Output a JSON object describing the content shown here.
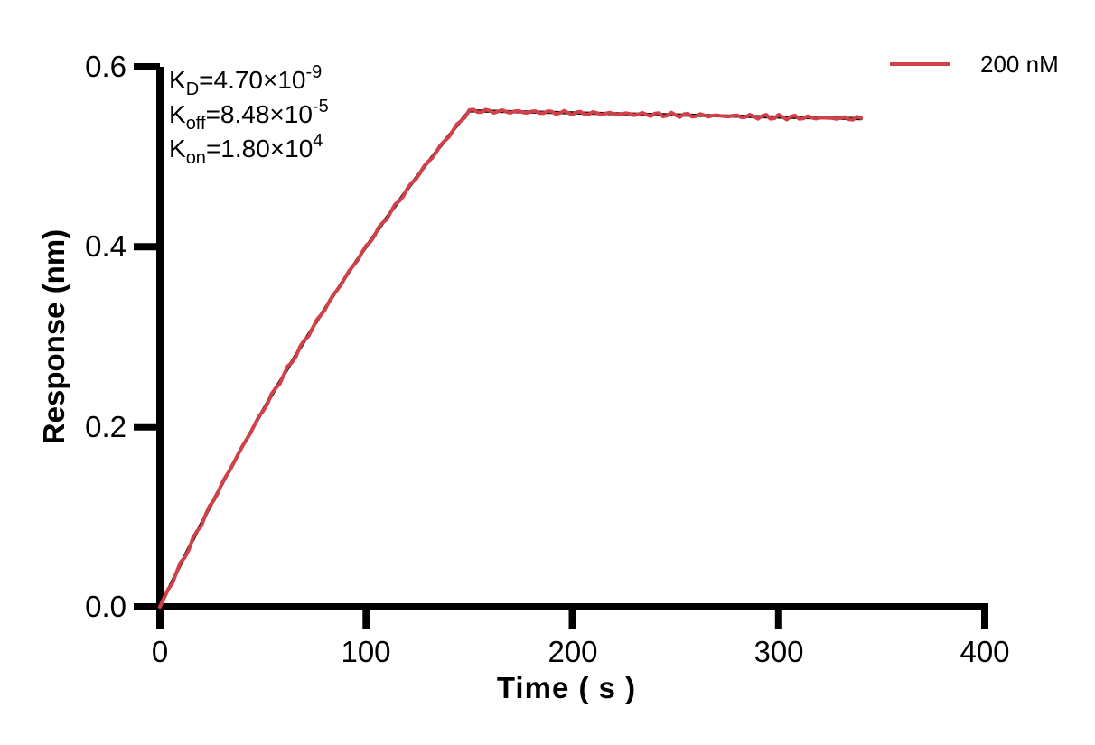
{
  "chart_data": {
    "type": "line",
    "title": "",
    "xlabel": "Time ( s )",
    "ylabel": "Response (nm)",
    "xlim": [
      0,
      400
    ],
    "ylim": [
      0.0,
      0.6
    ],
    "xtick_labels": [
      "0",
      "100",
      "200",
      "300",
      "400"
    ],
    "ytick_labels": [
      "0.0",
      "0.2",
      "0.4",
      "0.6"
    ],
    "grid": false,
    "legend_position": "top-right",
    "axis_color": "#000000",
    "fit_color": "#000000",
    "series": [
      {
        "name": "200 nM",
        "color": "#d2414a",
        "description": "measured response trace with black kinetic fit underneath; association 0-150 s, dissociation 150-340 s",
        "points": [
          [
            0,
            0.0
          ],
          [
            5,
            0.0237
          ],
          [
            10,
            0.047
          ],
          [
            15,
            0.0699
          ],
          [
            20,
            0.0923
          ],
          [
            25,
            0.1143
          ],
          [
            30,
            0.1359
          ],
          [
            35,
            0.1571
          ],
          [
            40,
            0.1779
          ],
          [
            45,
            0.1983
          ],
          [
            50,
            0.2184
          ],
          [
            55,
            0.2381
          ],
          [
            60,
            0.2574
          ],
          [
            65,
            0.2764
          ],
          [
            70,
            0.2951
          ],
          [
            75,
            0.3134
          ],
          [
            80,
            0.3314
          ],
          [
            85,
            0.349
          ],
          [
            90,
            0.3663
          ],
          [
            95,
            0.3833
          ],
          [
            100,
            0.4
          ],
          [
            105,
            0.4164
          ],
          [
            110,
            0.4325
          ],
          [
            115,
            0.4483
          ],
          [
            120,
            0.4638
          ],
          [
            125,
            0.4791
          ],
          [
            130,
            0.494
          ],
          [
            135,
            0.5087
          ],
          [
            140,
            0.5231
          ],
          [
            145,
            0.5373
          ],
          [
            150,
            0.5511
          ],
          [
            160,
            0.5507
          ],
          [
            170,
            0.5502
          ],
          [
            180,
            0.5497
          ],
          [
            190,
            0.5493
          ],
          [
            200,
            0.5488
          ],
          [
            210,
            0.5483
          ],
          [
            220,
            0.5479
          ],
          [
            230,
            0.5474
          ],
          [
            240,
            0.5469
          ],
          [
            250,
            0.5465
          ],
          [
            260,
            0.546
          ],
          [
            270,
            0.5455
          ],
          [
            280,
            0.5451
          ],
          [
            290,
            0.5446
          ],
          [
            300,
            0.5441
          ],
          [
            310,
            0.5437
          ],
          [
            320,
            0.5432
          ],
          [
            330,
            0.5428
          ],
          [
            340,
            0.5423
          ]
        ]
      }
    ]
  },
  "annotations": [
    {
      "base": "K",
      "sub": "D",
      "mid": "=4.70×10",
      "exp": "-9"
    },
    {
      "base": "K",
      "sub": "off",
      "mid": "=8.48×10",
      "exp": "-5"
    },
    {
      "base": "K",
      "sub": "on",
      "mid": "=1.80×10",
      "exp": "4"
    }
  ],
  "legend": {
    "label": "200 nM",
    "color": "#d2414a"
  }
}
